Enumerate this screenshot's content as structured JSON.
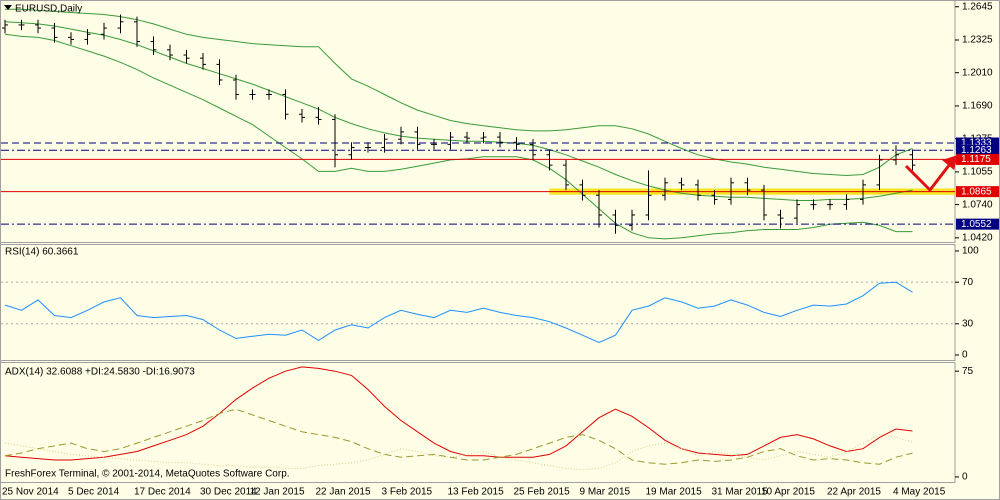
{
  "chart_data": [
    {
      "type": "ohlc",
      "title": "EURUSD,Daily",
      "color": "#000000",
      "categories": [
        "25 Nov 2014",
        null,
        null,
        null,
        "5 Dec 2014",
        null,
        null,
        null,
        "17 Dec 2014",
        null,
        null,
        null,
        "30 Dec 2014",
        null,
        null,
        "12 Jan 2015",
        null,
        null,
        null,
        "22 Jan 2015",
        null,
        null,
        null,
        "3 Feb 2015",
        null,
        null,
        null,
        "13 Feb 2015",
        null,
        null,
        null,
        "25 Feb 2015",
        null,
        null,
        null,
        "9 Mar 2015",
        null,
        null,
        null,
        "19 Mar 2015",
        null,
        null,
        null,
        "31 Mar 2015",
        null,
        null,
        "10 Apr 2015",
        null,
        null,
        null,
        "22 Apr 2015",
        null,
        null,
        null,
        "4 May 2015",
        null
      ],
      "open": [
        1.244,
        1.247,
        1.247,
        1.244,
        1.235,
        1.233,
        1.238,
        1.244,
        1.25,
        1.231,
        1.223,
        1.218,
        1.215,
        1.209,
        1.194,
        1.18,
        1.18,
        1.18,
        1.161,
        1.158,
        1.156,
        1.122,
        1.129,
        1.129,
        1.137,
        1.144,
        1.132,
        1.132,
        1.139,
        1.138,
        1.139,
        1.134,
        1.132,
        1.122,
        1.112,
        1.093,
        1.083,
        1.064,
        1.054,
        1.064,
        1.083,
        1.095,
        1.093,
        1.083,
        1.079,
        1.095,
        1.088,
        1.064,
        1.061,
        1.074,
        1.074,
        1.074,
        1.079,
        1.093,
        1.117,
        1.122
      ],
      "high": [
        1.252,
        1.252,
        1.252,
        1.249,
        1.24,
        1.243,
        1.249,
        1.257,
        1.255,
        1.236,
        1.228,
        1.223,
        1.22,
        1.214,
        1.199,
        1.185,
        1.185,
        1.185,
        1.166,
        1.168,
        1.161,
        1.134,
        1.134,
        1.142,
        1.149,
        1.149,
        1.137,
        1.144,
        1.144,
        1.144,
        1.144,
        1.139,
        1.137,
        1.127,
        1.117,
        1.098,
        1.088,
        1.069,
        1.069,
        1.107,
        1.1,
        1.1,
        1.098,
        1.088,
        1.1,
        1.1,
        1.093,
        1.069,
        1.079,
        1.079,
        1.079,
        1.084,
        1.098,
        1.122,
        1.131,
        1.127
      ],
      "low": [
        1.239,
        1.242,
        1.239,
        1.23,
        1.228,
        1.228,
        1.233,
        1.239,
        1.226,
        1.218,
        1.213,
        1.21,
        1.204,
        1.189,
        1.175,
        1.175,
        1.175,
        1.156,
        1.153,
        1.151,
        1.11,
        1.117,
        1.124,
        1.124,
        1.132,
        1.127,
        1.127,
        1.127,
        1.133,
        1.133,
        1.129,
        1.127,
        1.117,
        1.107,
        1.088,
        1.078,
        1.052,
        1.046,
        1.049,
        1.059,
        1.078,
        1.088,
        1.078,
        1.074,
        1.074,
        1.083,
        1.059,
        1.051,
        1.056,
        1.069,
        1.069,
        1.069,
        1.074,
        1.088,
        1.112,
        1.107
      ],
      "close": [
        1.247,
        1.247,
        1.244,
        1.235,
        1.233,
        1.238,
        1.244,
        1.25,
        1.231,
        1.223,
        1.218,
        1.215,
        1.209,
        1.194,
        1.18,
        1.18,
        1.18,
        1.161,
        1.158,
        1.156,
        1.122,
        1.129,
        1.129,
        1.137,
        1.144,
        1.132,
        1.132,
        1.139,
        1.138,
        1.139,
        1.134,
        1.132,
        1.122,
        1.112,
        1.093,
        1.083,
        1.064,
        1.054,
        1.064,
        1.083,
        1.095,
        1.093,
        1.083,
        1.079,
        1.095,
        1.088,
        1.064,
        1.061,
        1.074,
        1.074,
        1.074,
        1.079,
        1.093,
        1.117,
        1.122,
        1.112
      ],
      "bands": {
        "color": "#3a9a3a",
        "upper": [
          1.262,
          1.262,
          1.261,
          1.26,
          1.259,
          1.258,
          1.257,
          1.255,
          1.252,
          1.248,
          1.243,
          1.238,
          1.235,
          1.233,
          1.231,
          1.229,
          1.228,
          1.227,
          1.226,
          1.226,
          1.21,
          1.195,
          1.188,
          1.18,
          1.172,
          1.165,
          1.16,
          1.155,
          1.152,
          1.15,
          1.148,
          1.146,
          1.145,
          1.145,
          1.146,
          1.148,
          1.15,
          1.15,
          1.147,
          1.142,
          1.135,
          1.128,
          1.122,
          1.118,
          1.115,
          1.113,
          1.11,
          1.108,
          1.106,
          1.104,
          1.103,
          1.102,
          1.103,
          1.11,
          1.122,
          1.128
        ],
        "middle": [
          1.25,
          1.249,
          1.248,
          1.246,
          1.243,
          1.24,
          1.237,
          1.233,
          1.228,
          1.222,
          1.216,
          1.21,
          1.205,
          1.2,
          1.195,
          1.19,
          1.184,
          1.178,
          1.172,
          1.166,
          1.158,
          1.152,
          1.147,
          1.143,
          1.14,
          1.138,
          1.137,
          1.136,
          1.135,
          1.135,
          1.134,
          1.133,
          1.131,
          1.127,
          1.122,
          1.116,
          1.11,
          1.103,
          1.097,
          1.092,
          1.088,
          1.085,
          1.083,
          1.082,
          1.081,
          1.081,
          1.08,
          1.079,
          1.078,
          1.078,
          1.079,
          1.079,
          1.08,
          1.082,
          1.085,
          1.088
        ],
        "lower": [
          1.238,
          1.236,
          1.235,
          1.232,
          1.227,
          1.222,
          1.217,
          1.211,
          1.204,
          1.196,
          1.189,
          1.182,
          1.175,
          1.167,
          1.159,
          1.151,
          1.14,
          1.129,
          1.118,
          1.106,
          1.106,
          1.109,
          1.106,
          1.106,
          1.108,
          1.111,
          1.114,
          1.117,
          1.118,
          1.12,
          1.12,
          1.12,
          1.117,
          1.109,
          1.098,
          1.084,
          1.07,
          1.056,
          1.047,
          1.042,
          1.041,
          1.042,
          1.044,
          1.046,
          1.047,
          1.049,
          1.05,
          1.05,
          1.05,
          1.052,
          1.055,
          1.056,
          1.057,
          1.054,
          1.048,
          1.048
        ]
      },
      "levels": [
        {
          "value": 1.1333,
          "color": "#000080",
          "style": "dash"
        },
        {
          "value": 1.1263,
          "color": "#000080",
          "style": "dashdot"
        },
        {
          "value": 1.1175,
          "color": "#e00000",
          "style": "solid"
        },
        {
          "value": 1.0865,
          "color": "#e00000",
          "style": "solid"
        },
        {
          "value": 1.0552,
          "color": "#000080",
          "style": "dashdot"
        }
      ],
      "zone": {
        "low": 1.0835,
        "high": 1.0895,
        "start_index": 33,
        "color": "#f5e000"
      },
      "ylim": [
        1.038,
        1.271
      ],
      "yticks": [
        1.2645,
        1.2325,
        {
          "value": 1.201,
          "label": "1.2010"
        },
        {
          "value": 1.169,
          "label": "1.1690"
        },
        1.1375,
        1.1055,
        {
          "value": 1.074,
          "label": "1.0740"
        },
        {
          "value": 1.042,
          "label": "1.0420"
        }
      ]
    },
    {
      "type": "line",
      "title": "RSI(14) 60.3661",
      "series": [
        {
          "color": "#1e90ff",
          "dash": "solid",
          "values": [
            48,
            43,
            53,
            38,
            36,
            43,
            51,
            55,
            38,
            36,
            37,
            38,
            34,
            24,
            16,
            18,
            20,
            19,
            24,
            14,
            24,
            29,
            26,
            36,
            43,
            39,
            36,
            43,
            41,
            45,
            41,
            38,
            36,
            32,
            26,
            19,
            12,
            19,
            43,
            47,
            55,
            51,
            45,
            47,
            53,
            48,
            41,
            37,
            43,
            48,
            47,
            49,
            57,
            69,
            70,
            60.4
          ]
        }
      ],
      "levels": [
        70,
        30
      ],
      "ylim": [
        -4.8,
        106.7
      ],
      "yticks": [
        0,
        30,
        70,
        100
      ]
    },
    {
      "type": "line",
      "title": "ADX(14) 32.6088 +DI:24.5830 -DI:16.9073",
      "footer": "FreshForex Terminal, © 2001-2014, MetaQuotes Software Corp.",
      "series": [
        {
          "color": "#e00000",
          "dash": "solid",
          "values": [
            15,
            14,
            13,
            12,
            12,
            13,
            14,
            16,
            18,
            22,
            26,
            30,
            36,
            45,
            55,
            63,
            70,
            75,
            78,
            77,
            75,
            72,
            62,
            50,
            40,
            32,
            24,
            18,
            15,
            15,
            14,
            14,
            14,
            16,
            22,
            32,
            42,
            48,
            43,
            35,
            26,
            20,
            17,
            16,
            15,
            16,
            22,
            28,
            30,
            27,
            22,
            18,
            20,
            28,
            34,
            32.6
          ]
        },
        {
          "color": "#d8cf8a",
          "dash": "dot",
          "values": [
            24,
            22,
            20,
            18,
            16,
            15,
            14,
            13,
            12,
            11,
            10,
            10,
            9,
            8,
            8,
            7,
            7,
            6,
            6,
            8,
            9,
            10,
            12,
            16,
            20,
            18,
            15,
            14,
            16,
            18,
            14,
            12,
            10,
            8,
            6,
            5,
            6,
            10,
            18,
            22,
            24,
            20,
            15,
            18,
            16,
            14,
            12,
            15,
            18,
            16,
            14,
            18,
            24,
            30,
            28,
            24.6
          ]
        },
        {
          "color": "#9a9a30",
          "dash": "dash",
          "values": [
            15,
            17,
            20,
            22,
            24,
            20,
            18,
            20,
            24,
            28,
            32,
            36,
            40,
            45,
            48,
            44,
            40,
            36,
            32,
            30,
            28,
            25,
            20,
            16,
            14,
            15,
            16,
            14,
            12,
            12,
            14,
            16,
            20,
            24,
            28,
            30,
            26,
            20,
            12,
            10,
            9,
            10,
            12,
            11,
            12,
            14,
            18,
            20,
            15,
            12,
            13,
            12,
            10,
            9,
            14,
            16.9
          ]
        }
      ],
      "ylim": [
        -3.6,
        80.8
      ],
      "yticks": [
        0,
        75
      ]
    }
  ]
}
